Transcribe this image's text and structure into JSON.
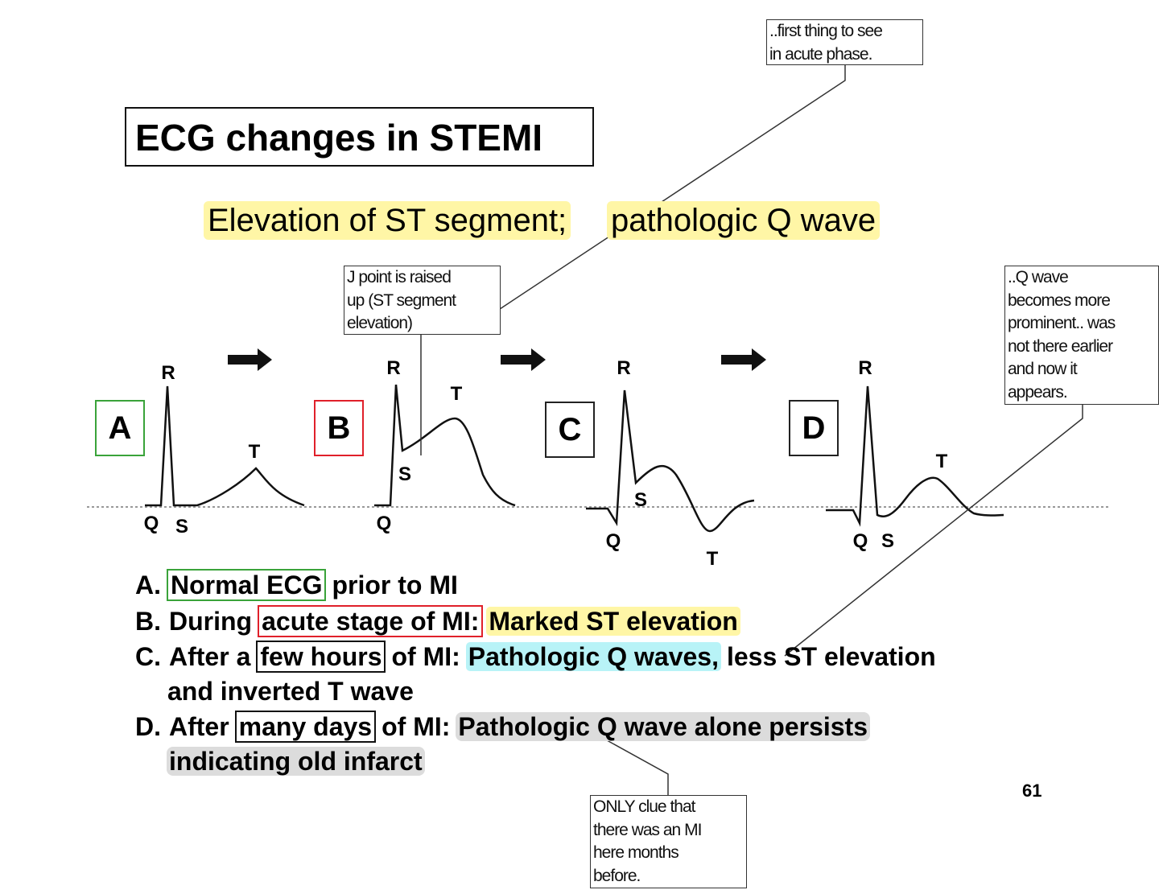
{
  "title": "ECG changes in STEMI",
  "subtitle": {
    "parts": [
      "Elevation of ST segment;",
      "pathologic Q wave"
    ]
  },
  "callouts": [
    {
      "lines": [
        "..first thing to see",
        "in acute phase."
      ]
    },
    {
      "lines": [
        "J point is raised",
        "up (ST segment",
        "elevation)"
      ]
    },
    {
      "lines": [
        "..Q wave",
        "becomes more",
        "prominent.. was",
        "not there earlier",
        "and now it",
        "appears."
      ]
    },
    {
      "lines": [
        "ONLY clue that",
        "there was an MI",
        "here months",
        "before."
      ]
    }
  ],
  "panels": [
    {
      "letter": "A",
      "labels": [
        "R",
        "T",
        "Q",
        "S"
      ]
    },
    {
      "letter": "B",
      "labels": [
        "R",
        "T",
        "S",
        "Q"
      ]
    },
    {
      "letter": "C",
      "labels": [
        "R",
        "S",
        "Q",
        "T"
      ]
    },
    {
      "letter": "D",
      "labels": [
        "R",
        "T",
        "Q",
        "S"
      ]
    }
  ],
  "list": [
    {
      "marker": "A.",
      "parts": [
        "Normal ECG",
        "prior to MI"
      ]
    },
    {
      "marker": "B.",
      "parts": [
        "During",
        "acute stage of MI:",
        "Marked ST elevation"
      ]
    },
    {
      "marker": "C.",
      "parts": [
        "After a",
        "few hours",
        "of MI:",
        "Pathologic Q waves,",
        "less ST elevation"
      ],
      "continuation": "and inverted T wave"
    },
    {
      "marker": "D.",
      "parts": [
        "After",
        "many days",
        "of MI:",
        "Pathologic Q wave alone persists"
      ],
      "continuation": "indicating old infarct"
    }
  ],
  "page_number": "61"
}
